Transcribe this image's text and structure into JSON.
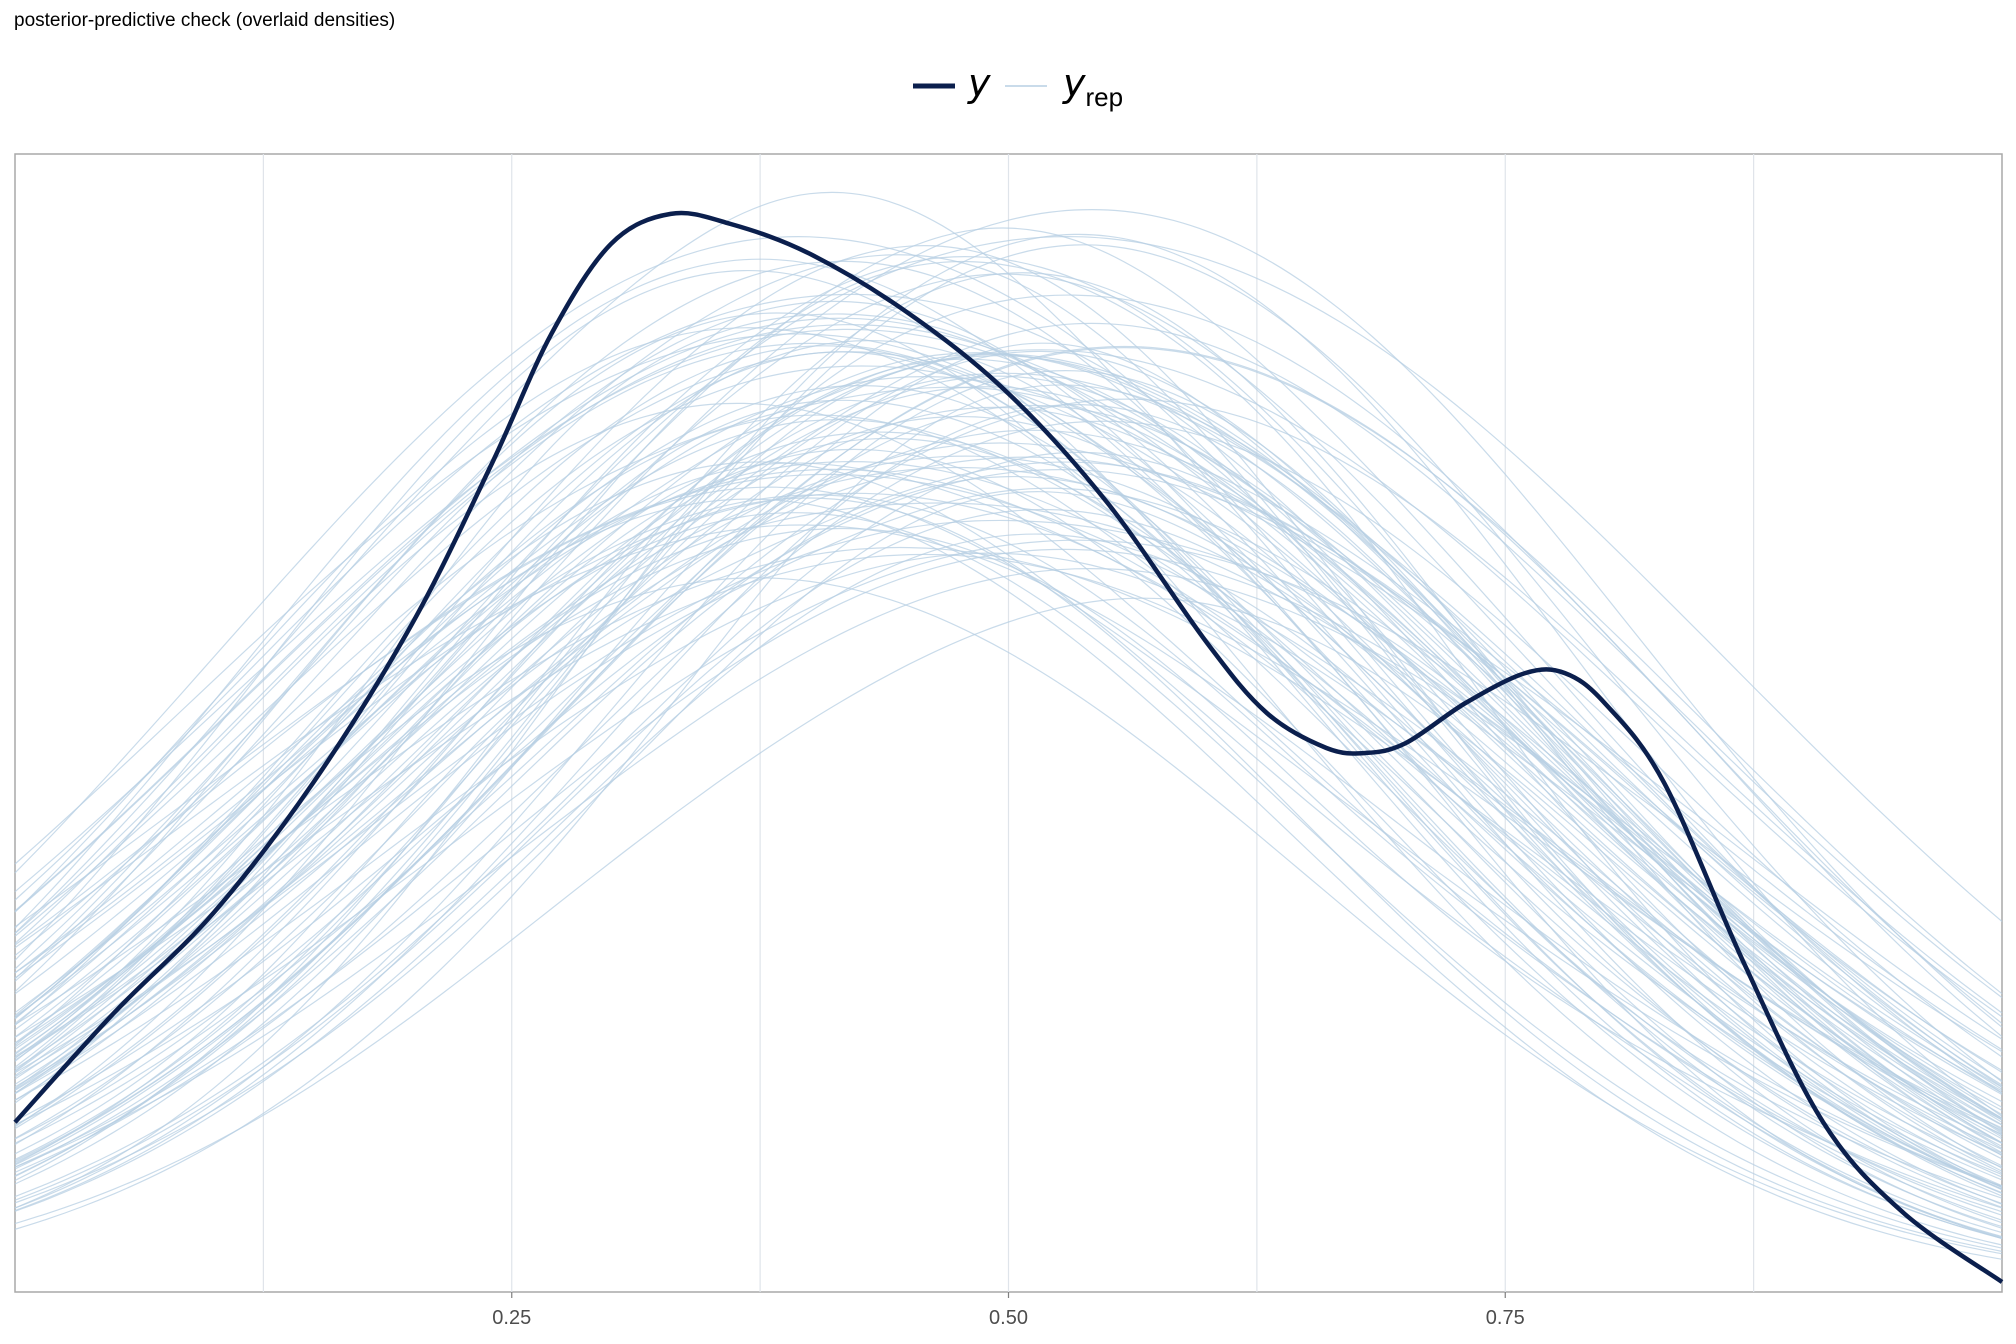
{
  "title": "posterior-predictive check (overlaid densities)",
  "colors": {
    "y": "#0b1f4d",
    "yrep": "#b7cfe3",
    "grid": "#dfe4ea",
    "frame": "#a9a9a9"
  },
  "legend": [
    {
      "symbol": "y",
      "subscript": ""
    },
    {
      "symbol": "y",
      "subscript": "rep"
    }
  ],
  "chart_data": {
    "type": "line",
    "title": "posterior-predictive check (overlaid densities)",
    "xlim": [
      0.0,
      1.0
    ],
    "ylim": [
      0.0,
      1.14
    ],
    "x_ticks": [
      {
        "value": 0.25,
        "label": "0.25"
      },
      {
        "value": 0.5,
        "label": "0.50"
      },
      {
        "value": 0.75,
        "label": "0.75"
      }
    ],
    "minor_gridlines": [
      0.125,
      0.375,
      0.625,
      0.875
    ],
    "y_axis_labels": "none",
    "series": [
      {
        "name": "y",
        "x": [
          0.0,
          0.05,
          0.1,
          0.15,
          0.2,
          0.24,
          0.27,
          0.3,
          0.33,
          0.36,
          0.4,
          0.45,
          0.5,
          0.55,
          0.6,
          0.63,
          0.66,
          0.68,
          0.7,
          0.73,
          0.76,
          0.78,
          0.8,
          0.83,
          0.87,
          0.91,
          0.95,
          1.0
        ],
        "y": [
          0.17,
          0.28,
          0.38,
          0.51,
          0.67,
          0.83,
          0.96,
          1.05,
          1.08,
          1.07,
          1.04,
          0.98,
          0.9,
          0.79,
          0.65,
          0.58,
          0.545,
          0.54,
          0.55,
          0.59,
          0.62,
          0.62,
          0.59,
          0.51,
          0.33,
          0.17,
          0.08,
          0.01
        ]
      }
    ],
    "yrep": {
      "name": "y_rep",
      "draw_count": 100,
      "summary": "replicated densities from posterior draws, roughly unimodal, peaking between x 0.35 and 0.55 at heights 0.68 to 1.14, tails near 0.05-0.25 at x 0 and 0.02-0.12 at x 1"
    }
  }
}
